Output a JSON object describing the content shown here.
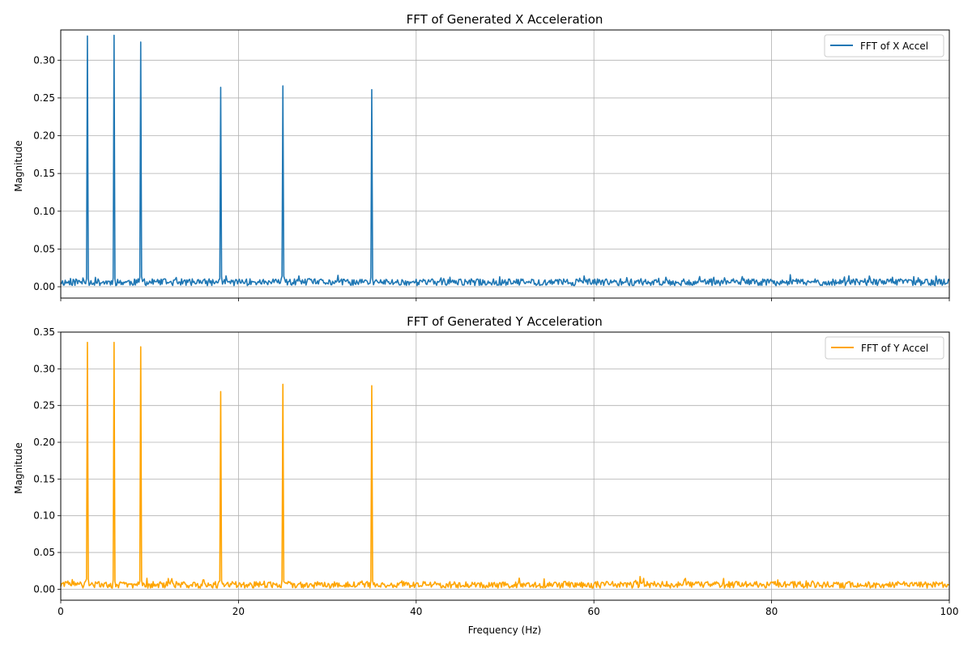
{
  "chart_data": [
    {
      "type": "line",
      "title": "FFT of Generated X Acceleration",
      "xlabel": "",
      "ylabel": "Magnitude",
      "xlim": [
        0,
        100
      ],
      "ylim": [
        -0.015,
        0.34
      ],
      "xticks": [
        0,
        20,
        40,
        60,
        80,
        100
      ],
      "xtick_labels_visible": false,
      "yticks": [
        0.0,
        0.05,
        0.1,
        0.15,
        0.2,
        0.25,
        0.3
      ],
      "ytick_labels": [
        "0.00",
        "0.05",
        "0.10",
        "0.15",
        "0.20",
        "0.25",
        "0.30"
      ],
      "grid": true,
      "legend_position": "top-right",
      "series": [
        {
          "name": "FFT of X Accel",
          "color": "#1f77b4",
          "noise_floor": 0.006,
          "peaks": [
            {
              "x": 3,
              "y": 0.332
            },
            {
              "x": 6,
              "y": 0.333
            },
            {
              "x": 9,
              "y": 0.324
            },
            {
              "x": 18,
              "y": 0.264
            },
            {
              "x": 25,
              "y": 0.266
            },
            {
              "x": 35,
              "y": 0.261
            }
          ]
        }
      ]
    },
    {
      "type": "line",
      "title": "FFT of Generated Y Acceleration",
      "xlabel": "Frequency (Hz)",
      "ylabel": "Magnitude",
      "xlim": [
        0,
        100
      ],
      "ylim": [
        -0.015,
        0.35
      ],
      "xticks": [
        0,
        20,
        40,
        60,
        80,
        100
      ],
      "xtick_labels": [
        "0",
        "20",
        "40",
        "60",
        "80",
        "100"
      ],
      "yticks": [
        0.0,
        0.05,
        0.1,
        0.15,
        0.2,
        0.25,
        0.3,
        0.35
      ],
      "ytick_labels": [
        "0.00",
        "0.05",
        "0.10",
        "0.15",
        "0.20",
        "0.25",
        "0.30",
        "0.35"
      ],
      "grid": true,
      "legend_position": "top-right",
      "series": [
        {
          "name": "FFT of Y Accel",
          "color": "#ffa500",
          "noise_floor": 0.006,
          "peaks": [
            {
              "x": 3,
              "y": 0.336
            },
            {
              "x": 6,
              "y": 0.336
            },
            {
              "x": 9,
              "y": 0.33
            },
            {
              "x": 18,
              "y": 0.269
            },
            {
              "x": 25,
              "y": 0.279
            },
            {
              "x": 35,
              "y": 0.277
            }
          ]
        }
      ]
    }
  ]
}
